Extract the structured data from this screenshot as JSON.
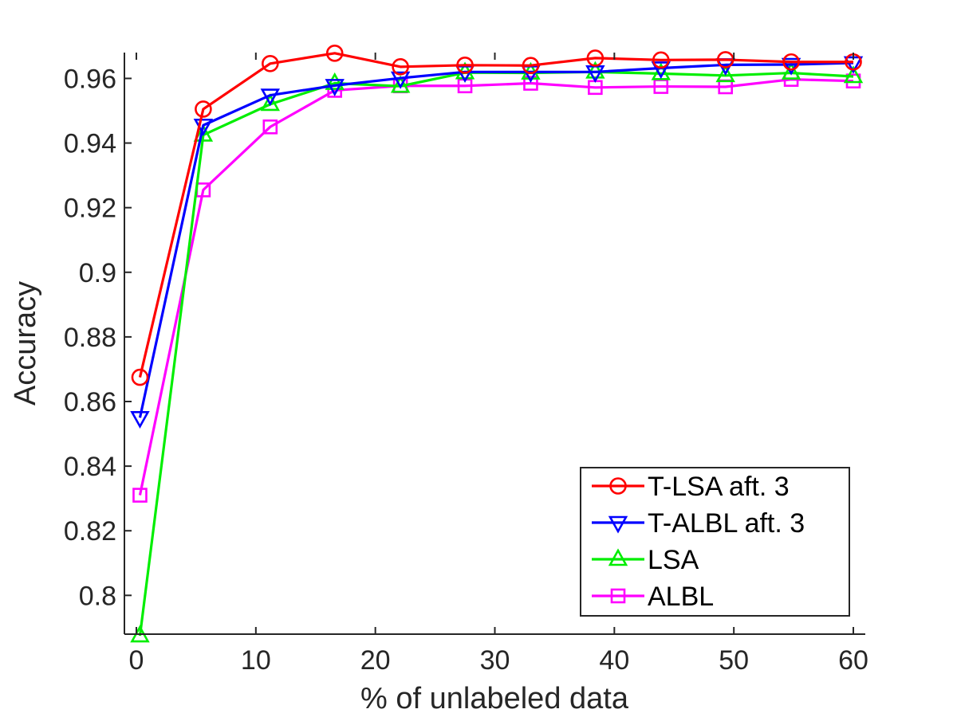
{
  "chart_data": {
    "type": "line",
    "title": "",
    "xlabel": "% of unlabeled data",
    "ylabel": "Accuracy",
    "xlim": [
      -1,
      61
    ],
    "ylim": [
      0.788,
      0.968
    ],
    "xticks": [
      0,
      10,
      20,
      30,
      40,
      50,
      60
    ],
    "xtick_labels": [
      "0",
      "10",
      "20",
      "30",
      "40",
      "50",
      "60"
    ],
    "yticks": [
      0.8,
      0.82,
      0.84,
      0.86,
      0.88,
      0.9,
      0.92,
      0.94,
      0.96
    ],
    "ytick_labels": [
      "0.8",
      "0.82",
      "0.84",
      "0.86",
      "0.88",
      "0.9",
      "0.92",
      "0.94",
      "0.96"
    ],
    "grid": false,
    "legend_position": "bottom-right",
    "x": [
      0.3,
      5.6,
      11.2,
      16.6,
      22.1,
      27.5,
      33.0,
      38.4,
      43.9,
      49.3,
      54.8,
      60.0
    ],
    "series": [
      {
        "name": "T-LSA aft. 3",
        "color": "#ff0000",
        "marker": "circle",
        "values": [
          0.8675,
          0.9505,
          0.9646,
          0.9678,
          0.9636,
          0.9641,
          0.964,
          0.9663,
          0.9657,
          0.9658,
          0.9651,
          0.9651
        ]
      },
      {
        "name": "T-ALBL aft. 3",
        "color": "#0000ff",
        "marker": "triangle-down",
        "values": [
          0.855,
          0.9455,
          0.9548,
          0.9578,
          0.9601,
          0.962,
          0.962,
          0.962,
          0.9632,
          0.9642,
          0.9643,
          0.9648
        ]
      },
      {
        "name": "LSA",
        "color": "#00ee00",
        "marker": "triangle-up",
        "values": [
          0.7875,
          0.9425,
          0.952,
          0.9585,
          0.9576,
          0.9618,
          0.9617,
          0.962,
          0.9615,
          0.9609,
          0.9617,
          0.9606
        ]
      },
      {
        "name": "ALBL",
        "color": "#ff00ff",
        "marker": "square",
        "values": [
          0.831,
          0.9255,
          0.945,
          0.9563,
          0.9577,
          0.9577,
          0.9585,
          0.9572,
          0.9575,
          0.9574,
          0.9597,
          0.9592
        ]
      }
    ]
  }
}
